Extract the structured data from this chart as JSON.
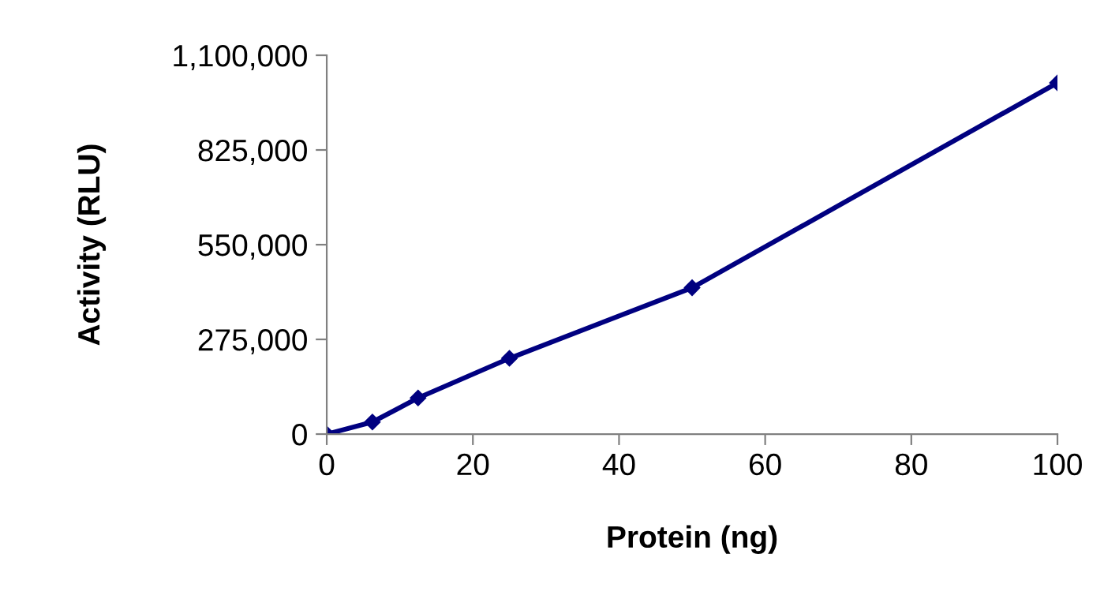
{
  "chart_data": {
    "type": "line",
    "xlabel": "Protein (ng)",
    "ylabel": "Activity (RLU)",
    "x": [
      0,
      6.25,
      12.5,
      25,
      50,
      100
    ],
    "series": [
      {
        "color": "#000080",
        "values": [
          0,
          35000,
          105000,
          220000,
          425000,
          1020000
        ]
      }
    ],
    "xlim": [
      0,
      100
    ],
    "xticks": [
      0,
      20,
      40,
      60,
      80,
      100
    ],
    "ylim": [
      0,
      1100000
    ],
    "yticks": [
      {
        "value": 0,
        "label": "0"
      },
      {
        "value": 275000,
        "label": "275,000"
      },
      {
        "value": 550000,
        "label": "550,000"
      },
      {
        "value": 825000,
        "label": "825,000"
      },
      {
        "value": 1100000,
        "label": "1,100,000"
      }
    ],
    "marker": "diamond",
    "line_style": "solid",
    "grid": false,
    "legend": false
  }
}
